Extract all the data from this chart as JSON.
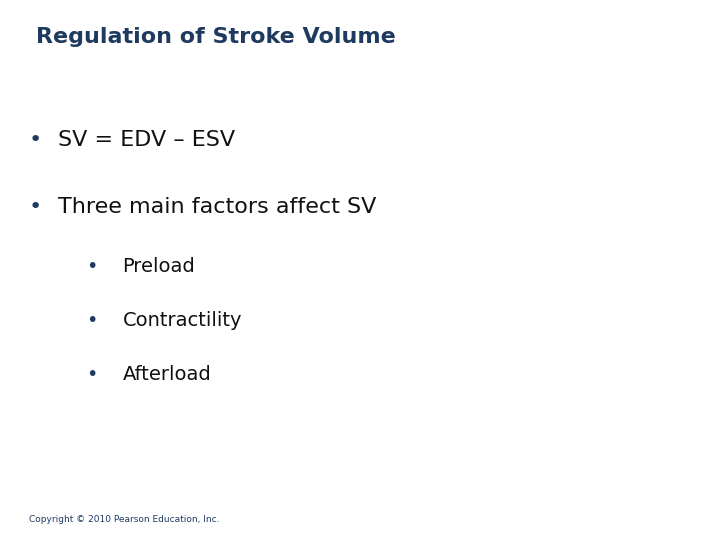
{
  "title": "Regulation of Stroke Volume",
  "title_color": "#1e3a5f",
  "title_fontsize": 16,
  "title_bold": true,
  "background_color": "#ffffff",
  "bullet1": "SV = EDV – ESV",
  "bullet2": "Three main factors affect SV",
  "sub_bullet1": "Preload",
  "sub_bullet2": "Contractility",
  "sub_bullet3": "Afterload",
  "main_bullet_fontsize": 16,
  "sub_bullet_fontsize": 14,
  "text_color": "#111111",
  "bullet_color": "#1e3a5f",
  "copyright": "Copyright © 2010 Pearson Education, Inc.",
  "copyright_fontsize": 6.5,
  "copyright_color": "#1e3a5f"
}
